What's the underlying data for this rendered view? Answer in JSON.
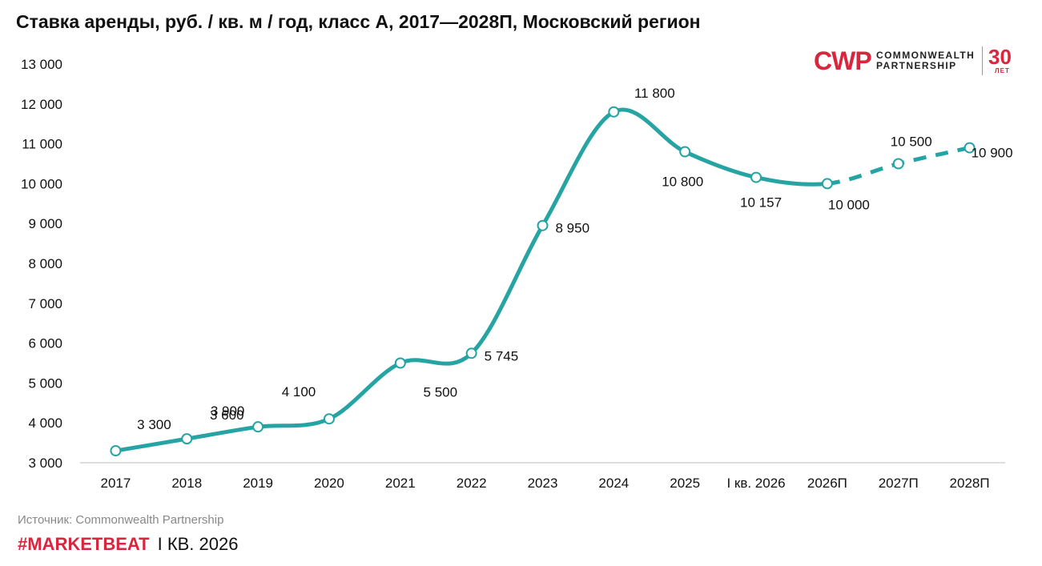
{
  "title": "Ставка аренды, руб. / кв. м / год, класс А, 2017—2028П, Московский регион",
  "logo": {
    "mark": "CWP",
    "name_line1": "COMMONWEALTH",
    "name_line2": "PARTNERSHIP",
    "anniversary": "30",
    "anniversary_label": "ЛЕТ",
    "accent_color": "#d7263d"
  },
  "source": "Источник: Commonwealth Partnership",
  "footer": {
    "tag": "#MARKETBEAT",
    "period": "I КВ. 2026"
  },
  "chart_data": {
    "type": "line",
    "categories": [
      "2017",
      "2018",
      "2019",
      "2020",
      "2021",
      "2022",
      "2023",
      "2024",
      "2025",
      "I кв. 2026",
      "2026П",
      "2027П",
      "2028П"
    ],
    "values": [
      3300,
      3600,
      3900,
      4100,
      5500,
      5745,
      8950,
      11800,
      10800,
      10157,
      10000,
      10500,
      10900
    ],
    "value_labels": [
      "3 300",
      "3 600",
      "3 900",
      "4 100",
      "5 500",
      "5 745",
      "8 950",
      "11 800",
      "10 800",
      "10 157",
      "10 000",
      "10 500",
      "10 900"
    ],
    "ylim": [
      3000,
      13000
    ],
    "yticks": [
      3000,
      4000,
      5000,
      6000,
      7000,
      8000,
      9000,
      10000,
      11000,
      12000,
      13000
    ],
    "ytick_labels": [
      "3 000",
      "4 000",
      "5 000",
      "6 000",
      "7 000",
      "8 000",
      "9 000",
      "10 000",
      "11 000",
      "12 000",
      "13 000"
    ],
    "forecast_from_index": 10,
    "line_color": "#26a4a4",
    "grid": false
  }
}
